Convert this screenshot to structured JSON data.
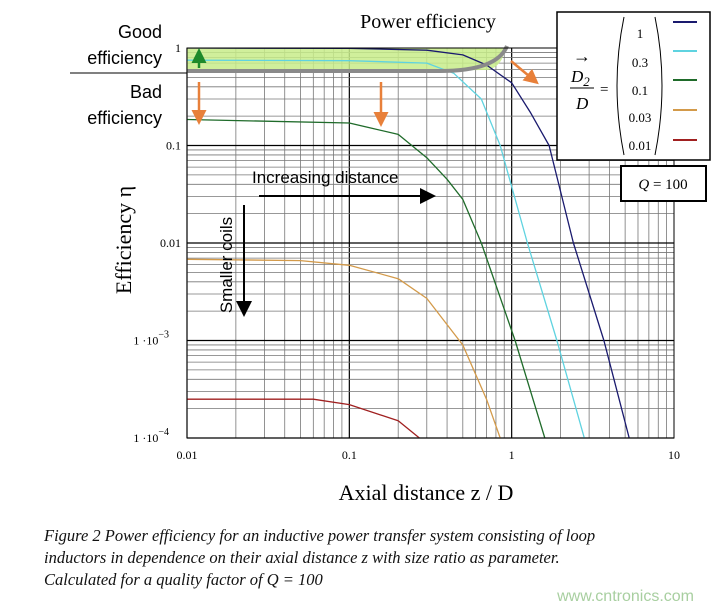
{
  "chart_data": {
    "type": "line",
    "title": "Power efficiency",
    "xlabel": "Axial distance z / D",
    "ylabel": "Efficiency η",
    "x_scale": "log",
    "y_scale": "log",
    "xlim": [
      0.01,
      10
    ],
    "ylim": [
      0.0001,
      1
    ],
    "x_ticks": [
      "0.01",
      "0.1",
      "1",
      "10"
    ],
    "y_ticks": [
      {
        "value": 1,
        "label": "1"
      },
      {
        "value": 0.1,
        "label": "0.1"
      },
      {
        "value": 0.01,
        "label": "0.01"
      },
      {
        "value": 0.001,
        "label": "1 ·10",
        "exp": "−3"
      },
      {
        "value": 0.0001,
        "label": "1 ·10",
        "exp": "−4"
      }
    ],
    "grid": true,
    "legend_placement": "top-right",
    "legend_label_lhs": {
      "numerator": "D",
      "sub": "2",
      "denominator": "D",
      "arrow": "→",
      "equals": "="
    },
    "series": [
      {
        "name": "1",
        "color": "#1a1a6e",
        "x": [
          0.01,
          0.1,
          0.3,
          0.5,
          0.7,
          1,
          1.3,
          1.7,
          2.4,
          3.7,
          5.3
        ],
        "y": [
          1,
          0.99,
          0.95,
          0.85,
          0.67,
          0.44,
          0.22,
          0.1,
          0.01,
          0.001,
          0.0001
        ]
      },
      {
        "name": "0.3",
        "color": "#5fd3e0",
        "x": [
          0.01,
          0.1,
          0.3,
          0.44,
          0.65,
          0.85,
          1.25,
          1.9,
          2.8
        ],
        "y": [
          0.75,
          0.74,
          0.7,
          0.55,
          0.3,
          0.1,
          0.01,
          0.001,
          0.0001
        ]
      },
      {
        "name": "0.1",
        "color": "#1f6b2a",
        "x": [
          0.01,
          0.1,
          0.2,
          0.3,
          0.4,
          0.5,
          0.65,
          1.05,
          1.6
        ],
        "y": [
          0.185,
          0.17,
          0.13,
          0.075,
          0.045,
          0.028,
          0.01,
          0.001,
          0.0001
        ]
      },
      {
        "name": "0.03",
        "color": "#d39a4a",
        "x": [
          0.01,
          0.05,
          0.1,
          0.2,
          0.3,
          0.5,
          0.7,
          0.85
        ],
        "y": [
          0.0068,
          0.0066,
          0.0059,
          0.0043,
          0.0027,
          0.0009,
          0.00025,
          0.0001
        ]
      },
      {
        "name": "0.01",
        "color": "#a02020",
        "x": [
          0.01,
          0.06,
          0.1,
          0.2,
          0.27
        ],
        "y": [
          0.00025,
          0.00025,
          0.00022,
          0.00015,
          0.0001
        ]
      }
    ],
    "annotations": {
      "good_efficiency": [
        "Good",
        "efficiency"
      ],
      "bad_efficiency": [
        "Bad",
        "efficiency"
      ],
      "increasing_distance": "Increasing distance",
      "smaller_coils": "Smaller coils",
      "q_box": {
        "q": "Q",
        "rest": " = 100"
      },
      "good_region_color": "#c8ec8a",
      "boundary_color": "#8a8a8a",
      "arrow_color": "#e8803a",
      "up_arrow_color": "#1e8a2a"
    }
  },
  "caption": [
    "Figure 2 Power efficiency for an inductive power transfer system consisting of loop",
    "inductors in dependence on their axial distance z with size ratio as parameter.",
    "Calculated for a quality factor of Q = 100"
  ],
  "watermark": "www.cntronics.com"
}
